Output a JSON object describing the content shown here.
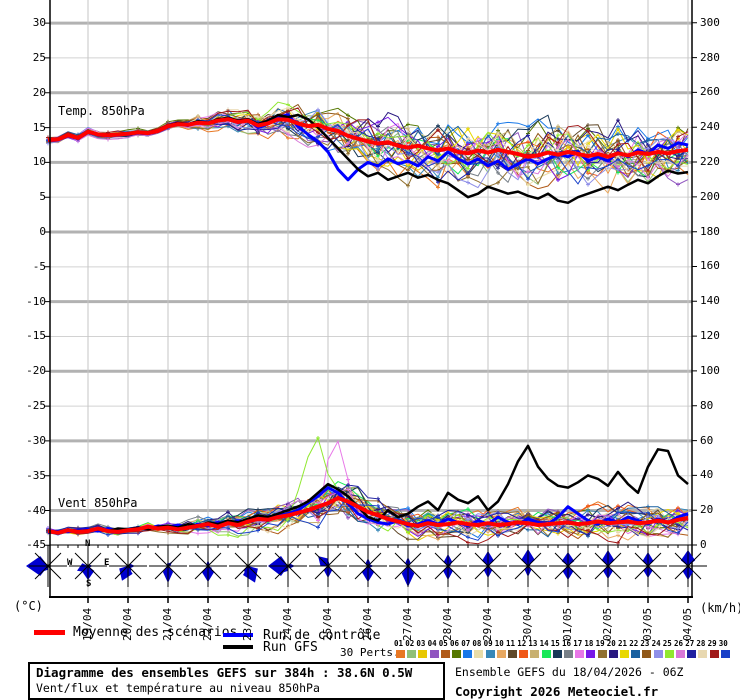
{
  "panels": {
    "temp_label": "Temp. 850hPa",
    "wind_label": "Vent 850hPa"
  },
  "axes": {
    "temp": {
      "unit": "(°C)",
      "ticks": [
        30,
        25,
        20,
        15,
        10,
        5,
        0,
        -5,
        -10,
        -15,
        -20,
        -25,
        -30,
        -35,
        -40,
        -45
      ]
    },
    "wind": {
      "unit": "(km/h)",
      "ticks": [
        300,
        280,
        260,
        240,
        220,
        200,
        180,
        160,
        140,
        120,
        100,
        80,
        60,
        40,
        20,
        0
      ]
    }
  },
  "x_axis": {
    "dates": [
      "19/04",
      "20/04",
      "21/04",
      "22/04",
      "23/04",
      "24/04",
      "25/04",
      "26/04",
      "27/04",
      "28/04",
      "29/04",
      "30/04",
      "01/05",
      "02/05",
      "03/05",
      "04/05"
    ]
  },
  "compass": {
    "n": "N",
    "e": "E",
    "s": "S",
    "w": "W"
  },
  "legend": {
    "mean_label": "Moyenne des scénarios",
    "control_label": "Run de contrôle",
    "gfs_label": "Run GFS",
    "perts_label": "30 Perts.",
    "mean_color": "#ff0000",
    "control_color": "#0000ff",
    "gfs_color": "#000000",
    "pert_numbers": [
      "01",
      "02",
      "03",
      "04",
      "05",
      "06",
      "07",
      "08",
      "09",
      "10",
      "11",
      "12",
      "13",
      "14",
      "15",
      "16",
      "17",
      "18",
      "19",
      "20",
      "21",
      "22",
      "23",
      "24",
      "25",
      "26",
      "27",
      "28",
      "29",
      "30"
    ],
    "pert_colors": [
      "#e87722",
      "#90c078",
      "#e8c800",
      "#9055c0",
      "#b05a18",
      "#557800",
      "#1878e8",
      "#e8dca8",
      "#3888b8",
      "#e8a860",
      "#604828",
      "#f05818",
      "#c8b070",
      "#18e858",
      "#183858",
      "#788088",
      "#e878e8",
      "#7818e8",
      "#907030",
      "#281880",
      "#e8d800",
      "#1860a0",
      "#905818",
      "#9090e8",
      "#90e830",
      "#d878d8",
      "#2020a0",
      "#e8d8b0",
      "#a01818",
      "#1840c8"
    ]
  },
  "footer": {
    "title": "Diagramme des ensembles GEFS sur 384h : 38.6N 0.5W",
    "subtitle": "Vent/flux et température au niveau 850hPa",
    "run_info": "Ensemble GEFS du 18/04/2026 - 06Z",
    "copyright": "Copyright 2026 Meteociel.fr"
  },
  "chart_data": {
    "type": "line",
    "title": "Diagramme des ensembles GEFS sur 384h : 38.6N 0.5W",
    "x_hours_step": 6,
    "x_days": [
      "19/04",
      "20/04",
      "21/04",
      "22/04",
      "23/04",
      "24/04",
      "25/04",
      "26/04",
      "27/04",
      "28/04",
      "29/04",
      "30/04",
      "01/05",
      "02/05",
      "03/05",
      "04/05"
    ],
    "temp_axis_range": [
      -45,
      33
    ],
    "wind_axis_range": [
      0,
      300
    ],
    "series": [
      {
        "name": "Moyenne des scénarios",
        "color": "#ff0000",
        "temp": [
          13.2,
          13.3,
          13.9,
          13.5,
          14.4,
          14.0,
          13.9,
          14.0,
          14.1,
          14.3,
          14.2,
          14.5,
          15.2,
          15.5,
          15.4,
          15.7,
          15.6,
          16.0,
          16.2,
          15.8,
          16.0,
          15.3,
          15.6,
          16.2,
          16.1,
          15.6,
          15.2,
          15.4,
          14.8,
          14.5,
          13.8,
          13.4,
          13.0,
          12.7,
          12.9,
          12.4,
          12.1,
          12.4,
          12.0,
          11.7,
          12.0,
          11.5,
          11.3,
          11.7,
          11.4,
          11.8,
          11.5,
          11.2,
          10.8,
          11.0,
          11.4,
          11.1,
          11.5,
          11.2,
          10.9,
          11.2,
          10.8,
          11.3,
          11.0,
          11.4,
          11.2,
          11.5,
          11.3,
          11.6,
          11.8
        ],
        "wind": [
          8,
          7,
          8.5,
          7.5,
          8,
          9.5,
          8,
          7.5,
          8.5,
          9,
          10.5,
          9.5,
          10,
          9,
          10,
          11,
          12,
          10.5,
          12.5,
          11.5,
          13.5,
          15,
          14.5,
          16,
          17,
          18.5,
          20,
          22,
          24,
          27,
          25,
          22,
          19,
          17,
          15,
          13.5,
          12,
          11,
          12.5,
          11.5,
          12,
          13,
          12,
          11.5,
          12.5,
          11.5,
          12,
          13,
          12.5,
          11.5,
          12,
          12.5,
          13,
          12,
          12.5,
          13.5,
          12.5,
          13,
          13.5,
          12.5,
          13,
          14,
          13,
          14.5,
          15.5
        ]
      },
      {
        "name": "Run de contrôle",
        "color": "#0000ff",
        "temp": [
          13.1,
          13.2,
          13.8,
          13.4,
          14.3,
          13.9,
          13.8,
          14.0,
          14.0,
          14.2,
          14.1,
          14.4,
          15.1,
          15.6,
          15.3,
          15.8,
          15.5,
          16.1,
          16.3,
          15.7,
          16.1,
          15.0,
          15.5,
          16.5,
          16.8,
          15.2,
          14.0,
          13.0,
          11.5,
          9.0,
          7.5,
          9.0,
          10.0,
          9.5,
          10.5,
          9.8,
          10.2,
          9.5,
          10.8,
          10.2,
          11.5,
          10.5,
          9.8,
          10.5,
          9.5,
          10.2,
          9.0,
          9.8,
          10.5,
          9.8,
          10.5,
          11.2,
          10.8,
          11.5,
          10.2,
          10.8,
          10.2,
          11.5,
          10.8,
          11.8,
          11.2,
          12.5,
          12.0,
          12.8,
          12.5
        ],
        "wind": [
          7,
          8,
          7.5,
          8.5,
          9,
          8,
          9.5,
          8,
          9,
          10,
          9.5,
          11,
          10,
          11.5,
          10,
          12,
          11,
          13,
          12,
          14,
          13,
          16,
          14,
          17,
          18,
          20,
          24,
          28,
          33,
          30,
          24,
          18,
          15,
          13,
          12,
          14,
          11,
          12,
          14,
          12,
          15,
          13,
          11,
          14,
          12,
          16,
          13,
          12,
          15,
          13,
          12,
          16,
          22,
          18,
          14,
          12,
          15,
          13,
          16,
          14,
          12,
          15,
          13,
          16,
          18
        ]
      },
      {
        "name": "Run GFS",
        "color": "#000000",
        "temp": [
          13.2,
          13.4,
          13.8,
          13.6,
          14.5,
          14.1,
          14.0,
          14.1,
          14.2,
          14.4,
          14.3,
          14.6,
          15.3,
          15.7,
          15.5,
          15.9,
          15.7,
          16.2,
          16.4,
          16.0,
          16.2,
          15.5,
          16.0,
          16.8,
          16.5,
          16.8,
          16.2,
          15.0,
          13.5,
          12.0,
          10.5,
          9.0,
          8.0,
          8.5,
          7.5,
          8.0,
          8.5,
          7.8,
          8.2,
          7.5,
          7.0,
          6.0,
          5.0,
          5.5,
          6.5,
          6.0,
          5.5,
          5.8,
          5.2,
          4.8,
          5.5,
          4.5,
          4.2,
          5.0,
          5.5,
          6.0,
          6.5,
          6.0,
          6.8,
          7.5,
          7.0,
          8.0,
          8.8,
          8.4,
          8.6
        ],
        "wind": [
          8,
          7,
          9,
          8,
          8.5,
          9,
          8,
          9.5,
          9,
          10,
          9,
          10.5,
          11,
          10,
          12,
          11,
          13,
          12,
          14,
          13,
          15,
          17,
          16,
          18,
          20,
          22,
          25,
          30,
          35,
          32,
          28,
          22,
          16,
          14,
          20,
          16,
          18,
          22,
          25,
          20,
          30,
          26,
          24,
          28,
          20,
          25,
          35,
          48,
          57,
          45,
          38,
          34,
          33,
          36,
          40,
          38,
          34,
          42,
          35,
          30,
          45,
          55,
          54,
          40,
          35
        ]
      }
    ],
    "ensemble": {
      "count": 30,
      "temp_spread_start": 0.5,
      "temp_spread_max": 4.5,
      "wind_spread_start": 2.2,
      "wind_spread_max": 13,
      "outlier_wind_bumps": {
        "24": {
          "25": 18,
          "26": 40,
          "27": 52,
          "28": 30,
          "29": 12
        },
        "16": {
          "28": 25,
          "29": 33,
          "30": 18
        }
      }
    },
    "wind_roses": [
      {
        "petals": [
          [
            270,
            22,
            0.45
          ],
          [
            225,
            8,
            0.3
          ]
        ]
      },
      {
        "petals": [
          [
            180,
            14,
            0.45
          ],
          [
            247,
            12,
            0.4
          ],
          [
            90,
            5,
            0.25
          ]
        ]
      },
      {
        "petals": [
          [
            202,
            16,
            0.45
          ],
          [
            180,
            10,
            0.35
          ],
          [
            90,
            7,
            0.3
          ]
        ]
      },
      {
        "petals": [
          [
            180,
            17,
            0.3
          ],
          [
            45,
            6,
            0.25
          ],
          [
            0,
            5,
            0.2
          ]
        ]
      },
      {
        "petals": [
          [
            180,
            16,
            0.4
          ],
          [
            157,
            9,
            0.3
          ],
          [
            0,
            6,
            0.25
          ]
        ]
      },
      {
        "petals": [
          [
            157,
            18,
            0.45
          ],
          [
            180,
            12,
            0.35
          ]
        ]
      },
      {
        "petals": [
          [
            270,
            20,
            0.5
          ],
          [
            225,
            10,
            0.35
          ],
          [
            90,
            7,
            0.3
          ]
        ]
      },
      {
        "petals": [
          [
            315,
            14,
            0.4
          ],
          [
            180,
            12,
            0.35
          ],
          [
            0,
            6,
            0.25
          ]
        ]
      },
      {
        "petals": [
          [
            180,
            16,
            0.4
          ],
          [
            0,
            8,
            0.3
          ],
          [
            90,
            6,
            0.25
          ]
        ]
      },
      {
        "petals": [
          [
            180,
            21,
            0.3
          ],
          [
            0,
            9,
            0.3
          ]
        ]
      },
      {
        "petals": [
          [
            0,
            12,
            0.35
          ],
          [
            180,
            14,
            0.35
          ],
          [
            45,
            6,
            0.2
          ]
        ]
      },
      {
        "petals": [
          [
            0,
            15,
            0.4
          ],
          [
            180,
            12,
            0.35
          ]
        ]
      },
      {
        "petals": [
          [
            0,
            17,
            0.4
          ],
          [
            180,
            11,
            0.3
          ],
          [
            45,
            5,
            0.2
          ]
        ]
      },
      {
        "petals": [
          [
            0,
            14,
            0.45
          ],
          [
            180,
            14,
            0.4
          ]
        ]
      },
      {
        "petals": [
          [
            0,
            16,
            0.4
          ],
          [
            180,
            13,
            0.4
          ]
        ]
      },
      {
        "petals": [
          [
            0,
            14,
            0.4
          ],
          [
            180,
            12,
            0.4
          ]
        ]
      },
      {
        "petals": [
          [
            0,
            16,
            0.45
          ],
          [
            180,
            14,
            0.4
          ]
        ]
      }
    ]
  }
}
